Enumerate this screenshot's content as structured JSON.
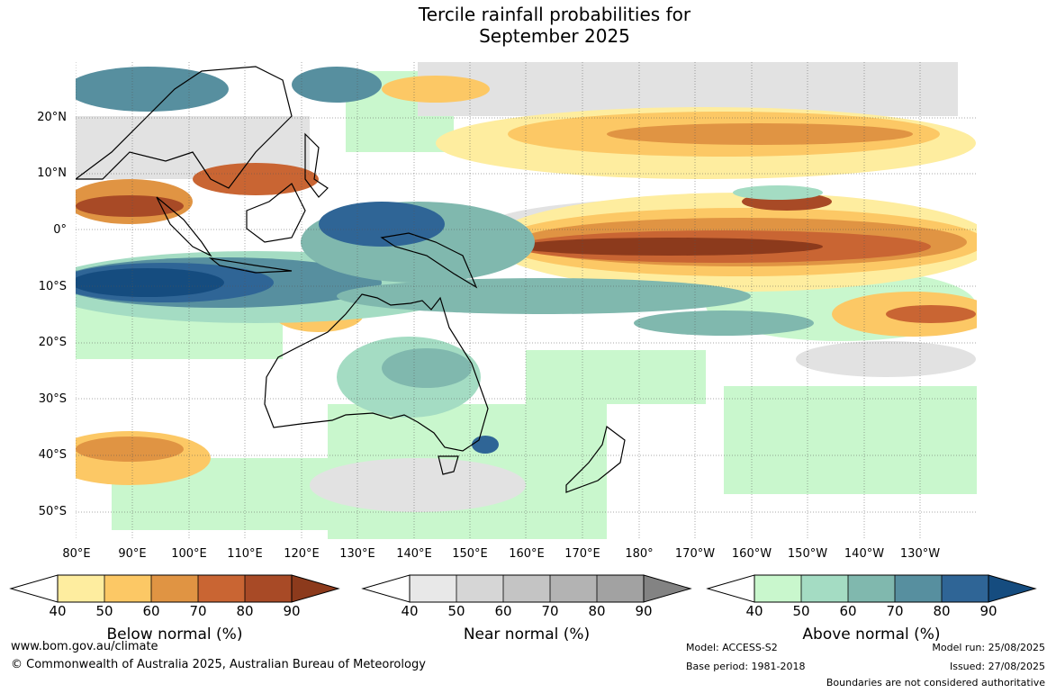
{
  "title_line1": "Tercile rainfall probabilities for",
  "title_line2": "September 2025",
  "lat_labels": [
    "20°N",
    "10°N",
    "0°",
    "10°S",
    "20°S",
    "30°S",
    "40°S",
    "50°S"
  ],
  "lon_labels": [
    "80°E",
    "90°E",
    "100°E",
    "110°E",
    "120°E",
    "130°E",
    "140°E",
    "150°E",
    "160°E",
    "170°E",
    "180°",
    "170°W",
    "160°W",
    "150°W",
    "140°W",
    "130°W"
  ],
  "colorbars": [
    {
      "name": "Below normal (%)",
      "ticks": [
        "40",
        "50",
        "60",
        "70",
        "80",
        "90"
      ],
      "colors": [
        "#ffffff",
        "#feed9f",
        "#fcc865",
        "#e09443",
        "#c96533",
        "#a84a26",
        "#8c3a1c"
      ]
    },
    {
      "name": "Near normal (%)",
      "ticks": [
        "40",
        "50",
        "60",
        "70",
        "80",
        "90"
      ],
      "colors": [
        "#ffffff",
        "#e8e8e8",
        "#d6d6d6",
        "#c4c4c4",
        "#b3b3b3",
        "#a2a2a2",
        "#838383"
      ]
    },
    {
      "name": "Above normal (%)",
      "ticks": [
        "40",
        "50",
        "60",
        "70",
        "80",
        "90"
      ],
      "colors": [
        "#ffffff",
        "#c9f7cd",
        "#a4dcc3",
        "#80b8ae",
        "#578f9f",
        "#2f6596",
        "#154c7f"
      ]
    }
  ],
  "footer": {
    "website": "www.bom.gov.au/climate",
    "copyright": "© Commonwealth of Australia 2025, Australian Bureau of Meteorology",
    "model": "Model: ACCESS-S2",
    "base_period": "Base period: 1981-2018",
    "model_run": "Model run: 25/08/2025",
    "issued": "Issued: 27/08/2025",
    "disclaimer": "Boundaries are not considered authoritative"
  }
}
